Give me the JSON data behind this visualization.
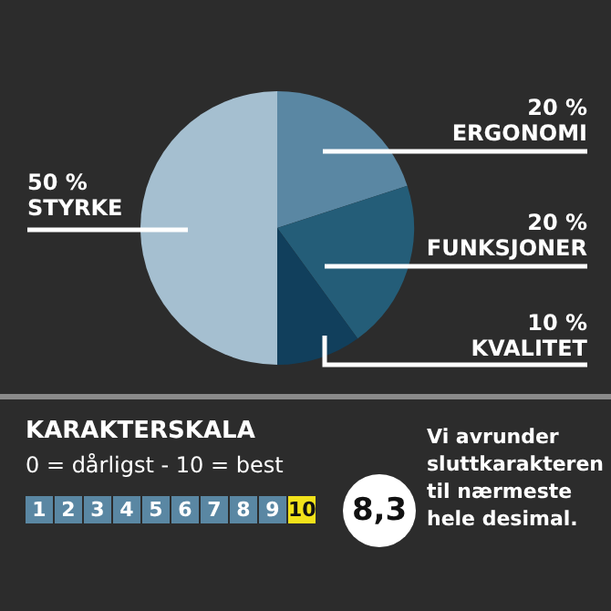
{
  "chart_data": {
    "type": "pie",
    "categories": [
      "ERGONOMI",
      "FUNKSJONER",
      "KVALITET",
      "STYRKE"
    ],
    "values": [
      20,
      20,
      10,
      50
    ],
    "value_labels": [
      "20 %",
      "20 %",
      "10 %",
      "50 %"
    ],
    "colors": [
      "#5a87a3",
      "#245d78",
      "#113f5c",
      "#a5bfd0"
    ],
    "legend": false,
    "annotations": [
      "KARAKTERSKALA",
      "0 = dårligst - 10 = best",
      "1",
      "2",
      "3",
      "4",
      "5",
      "6",
      "7",
      "8",
      "9",
      "10",
      "8,3",
      "Vi avrunder sluttkarakteren til nærmeste hele desimal."
    ]
  }
}
